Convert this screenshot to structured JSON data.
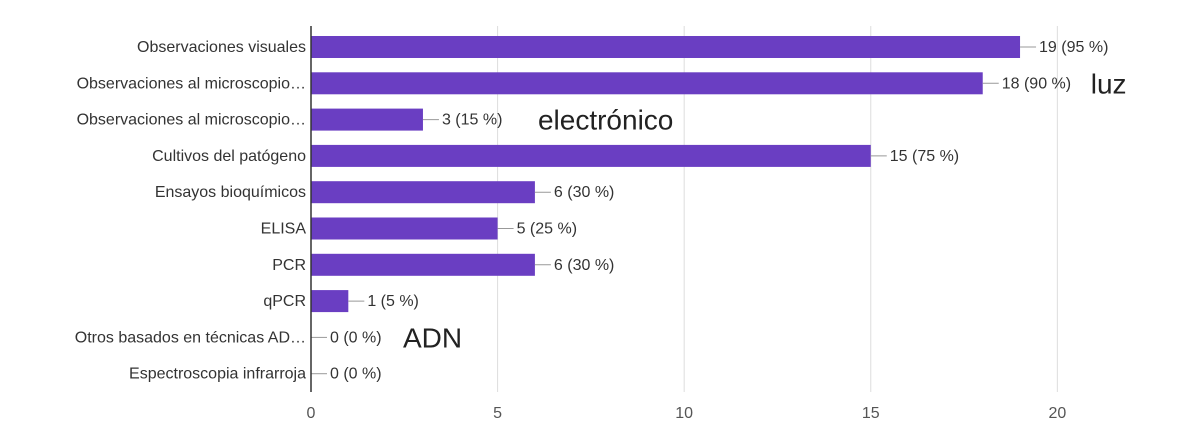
{
  "chart_data": {
    "type": "bar",
    "orientation": "horizontal",
    "categories": [
      "Observaciones visuales",
      "Observaciones al microscopio…",
      "Observaciones al microscopio…",
      "Cultivos del patógeno",
      "Ensayos bioquímicos",
      "ELISA",
      "PCR",
      "qPCR",
      "Otros basados en técnicas AD…",
      "Espectroscopia infrarroja"
    ],
    "values": [
      19,
      18,
      3,
      15,
      6,
      5,
      6,
      1,
      0,
      0
    ],
    "value_labels": [
      "19 (95 %)",
      "18 (90 %)",
      "3 (15 %)",
      "15 (75 %)",
      "6 (30 %)",
      "5 (25 %)",
      "6 (30 %)",
      "1 (5 %)",
      "0 (0 %)",
      "0 (0 %)"
    ],
    "annotations": [
      {
        "category_index": 1,
        "text": "luz"
      },
      {
        "category_index": 2,
        "text": "electrónico"
      },
      {
        "category_index": 8,
        "text": "ADN"
      }
    ],
    "xlim": [
      0,
      22
    ],
    "x_ticks": [
      0,
      5,
      10,
      15,
      20
    ],
    "title": "",
    "xlabel": "",
    "ylabel": "",
    "grid": true,
    "colors": {
      "bar": "#6a3ec2",
      "grid": "#dddddd",
      "axis": "#333333",
      "connector": "#999999"
    }
  }
}
